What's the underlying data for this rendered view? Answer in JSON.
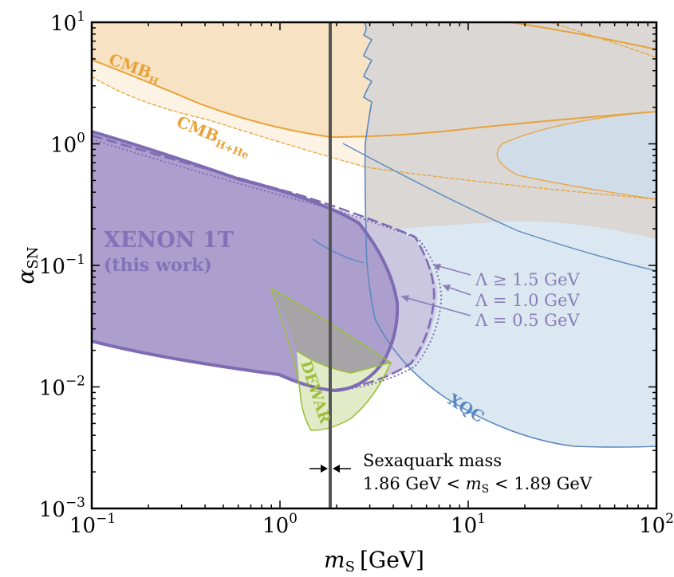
{
  "chart_data": {
    "type": "area",
    "xlabel": {
      "symbol": "m",
      "sub": "S",
      "unit": "[GeV]"
    },
    "ylabel": {
      "symbol": "α",
      "sub": "SN"
    },
    "xscale": "log",
    "yscale": "log",
    "xlim": [
      0.1,
      100
    ],
    "ylim": [
      0.001,
      10
    ],
    "xticks": [
      {
        "value": 0.1,
        "base": "10",
        "exp": "−1"
      },
      {
        "value": 1,
        "base": "10",
        "exp": "0"
      },
      {
        "value": 10,
        "base": "10",
        "exp": "1"
      },
      {
        "value": 100,
        "base": "10",
        "exp": "2"
      }
    ],
    "yticks": [
      {
        "value": 0.001,
        "base": "10",
        "exp": "−3"
      },
      {
        "value": 0.01,
        "base": "10",
        "exp": "−2"
      },
      {
        "value": 0.1,
        "base": "10",
        "exp": "−1"
      },
      {
        "value": 1,
        "base": "10",
        "exp": "0"
      },
      {
        "value": 10,
        "base": "10",
        "exp": "1"
      }
    ],
    "grid": false,
    "colors": {
      "cmb": "#e8a23a",
      "cmb_fill_h": "#f7e2c4",
      "cmb_fill_hhe": "#fdf3e4",
      "xqc": "#5b88c0",
      "xqc_fill": "#dce8f1",
      "overlap_fill": "#d9d6d2",
      "xenon": "#7d6cb3",
      "xenon_fill": "#ac9fcd",
      "xenon_light_fill": "#c9c1dd",
      "dewar": "#9dbe3e",
      "dewar_fill": "#e2ebc7",
      "dewar_overlap": "#a5a4a0",
      "mass_line": "#555555"
    },
    "series": [
      {
        "name": "CMB_H",
        "label": {
          "main": "CMB",
          "sub": "H"
        },
        "upper": [
          [
            0.1,
            10
          ],
          [
            100,
            10
          ]
        ],
        "lower": [
          [
            0.1,
            5.2
          ],
          [
            0.2,
            3.3
          ],
          [
            0.5,
            1.9
          ],
          [
            1,
            1.35
          ],
          [
            1.87,
            1.1
          ],
          [
            3,
            1.12
          ],
          [
            5,
            1.2
          ],
          [
            10,
            1.4
          ],
          [
            30,
            1.75
          ],
          [
            60,
            2.0
          ],
          [
            100,
            2.2
          ]
        ]
      },
      {
        "name": "CMB_H+He",
        "label": {
          "main": "CMB",
          "sub": "H+He"
        },
        "lower": [
          [
            0.1,
            2.7
          ],
          [
            0.2,
            1.5
          ],
          [
            0.5,
            0.7
          ],
          [
            1,
            0.48
          ],
          [
            2,
            0.33
          ],
          [
            5,
            0.22
          ],
          [
            10,
            0.19
          ],
          [
            30,
            0.17
          ],
          [
            100,
            0.165
          ]
        ]
      },
      {
        "name": "XQC",
        "label": {
          "main": "XQC"
        },
        "boundary": [
          [
            3.0,
            10
          ],
          [
            3.0,
            4.2
          ],
          [
            3.3,
            5.6
          ],
          [
            3.0,
            2.5
          ],
          [
            3.3,
            3.2
          ],
          [
            3.0,
            1.35
          ],
          [
            3.2,
            0.8
          ],
          [
            3.4,
            0.4
          ],
          [
            3.8,
            0.1
          ],
          [
            4.8,
            0.03
          ],
          [
            6,
            0.018
          ],
          [
            10,
            0.01
          ],
          [
            20,
            0.006
          ],
          [
            40,
            0.0038
          ],
          [
            70,
            0.0033
          ],
          [
            100,
            0.0034
          ]
        ]
      },
      {
        "name": "XENON 1T",
        "label": {
          "main": "XENON 1T",
          "note": "(this work)"
        },
        "boundary": [
          [
            0.1,
            1.25
          ],
          [
            0.3,
            0.62
          ],
          [
            1,
            0.33
          ],
          [
            2,
            0.2
          ],
          [
            3,
            0.12
          ],
          [
            4,
            0.06
          ],
          [
            4.3,
            0.025
          ],
          [
            3.5,
            0.012
          ],
          [
            2.3,
            0.0095
          ],
          [
            1.7,
            0.0095
          ],
          [
            1.1,
            0.012
          ],
          [
            0.5,
            0.016
          ],
          [
            0.1,
            0.024
          ]
        ]
      },
      {
        "name": "Λ ≥ 1.5 GeV",
        "boundary": [
          [
            0.1,
            1.05
          ],
          [
            1,
            0.3
          ],
          [
            2,
            0.2
          ],
          [
            4,
            0.12
          ],
          [
            6,
            0.06
          ],
          [
            6.6,
            0.028
          ],
          [
            5,
            0.016
          ],
          [
            3,
            0.011
          ],
          [
            2.1,
            0.0097
          ]
        ]
      },
      {
        "name": "Λ = 1.0 GeV",
        "boundary": [
          [
            0.1,
            1.1
          ],
          [
            1,
            0.31
          ],
          [
            2,
            0.21
          ],
          [
            4,
            0.13
          ],
          [
            6.5,
            0.065
          ],
          [
            7.2,
            0.03
          ],
          [
            5.5,
            0.016
          ],
          [
            3.2,
            0.011
          ],
          [
            2.1,
            0.0097
          ]
        ]
      },
      {
        "name": "DEWAR",
        "label": {
          "main": "DEWAR"
        },
        "boundary": [
          [
            1.3,
            0.028
          ],
          [
            1.7,
            0.022
          ],
          [
            2.4,
            0.016
          ],
          [
            3.6,
            0.015
          ],
          [
            2.8,
            0.008
          ],
          [
            1.9,
            0.0042
          ],
          [
            1.6,
            0.0038
          ],
          [
            1.4,
            0.006
          ],
          [
            1.3,
            0.02
          ]
        ]
      },
      {
        "name": "DEWAR upper",
        "boundary": [
          [
            0.88,
            0.065
          ],
          [
            1.3,
            0.045
          ],
          [
            2.5,
            0.03
          ],
          [
            4.5,
            0.018
          ],
          [
            3.6,
            0.015
          ],
          [
            2.4,
            0.016
          ],
          [
            1.7,
            0.022
          ],
          [
            1.3,
            0.028
          ],
          [
            0.98,
            0.045
          ]
        ]
      }
    ],
    "annotations": {
      "lambda_labels": [
        "Λ ≥ 1.5 GeV",
        "Λ = 1.0 GeV",
        "Λ = 0.5 GeV"
      ],
      "mass_title": "Sexaquark mass",
      "mass_range": "1.86 GeV < mS < 1.89 GeV",
      "mass_range_parts": {
        "left": "1.86 GeV < ",
        "symbol": "m",
        "sub": "S",
        "right": " < 1.89 GeV"
      },
      "mass_band_gev": [
        1.86,
        1.89
      ]
    }
  }
}
